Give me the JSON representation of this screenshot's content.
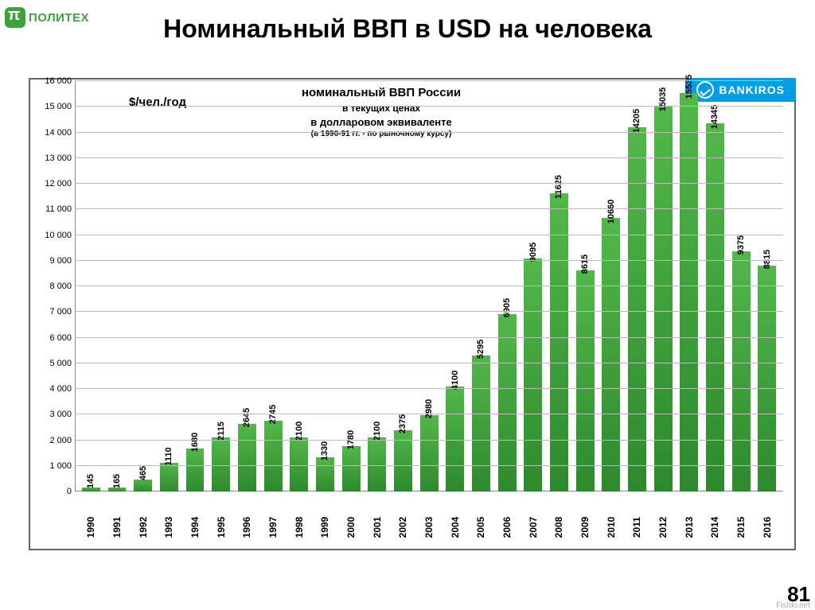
{
  "header": {
    "logo_text": "ПОЛИТЕХ",
    "page_title": "Номинальный ВВП в USD на человека"
  },
  "chart": {
    "type": "bar",
    "y_axis_title": "$/чел./год",
    "title_lines": {
      "line1": "номинальный  ВВП России",
      "line2": "в текущих  ценах",
      "line3": "в долларовом  эквиваленте",
      "line4": "(в 1990-91  гг. - по рыночному курсу)"
    },
    "brand_badge": "BANKIROS",
    "ylim_max": 16000,
    "ytick_step": 1000,
    "grid_color": "#bbbbbb",
    "bar_color_top": "#52b84a",
    "bar_color_bottom": "#2d8a2c",
    "background_color": "#ffffff",
    "title_fontsize": 15,
    "label_fontsize": 11,
    "years": [
      "1990",
      "1991",
      "1992",
      "1993",
      "1994",
      "1995",
      "1996",
      "1997",
      "1998",
      "1999",
      "2000",
      "2001",
      "2002",
      "2003",
      "2004",
      "2005",
      "2006",
      "2007",
      "2008",
      "2009",
      "2010",
      "2011",
      "2012",
      "2013",
      "2014",
      "2015",
      "2016"
    ],
    "values": [
      145,
      165,
      465,
      1110,
      1680,
      2115,
      2645,
      2745,
      2100,
      1330,
      1780,
      2100,
      2375,
      2980,
      4100,
      5295,
      6905,
      9095,
      11625,
      8615,
      10660,
      14205,
      15035,
      15535,
      14345,
      9375,
      8815
    ]
  },
  "footer": {
    "page_number": "81",
    "watermark": "Fishki.net"
  }
}
